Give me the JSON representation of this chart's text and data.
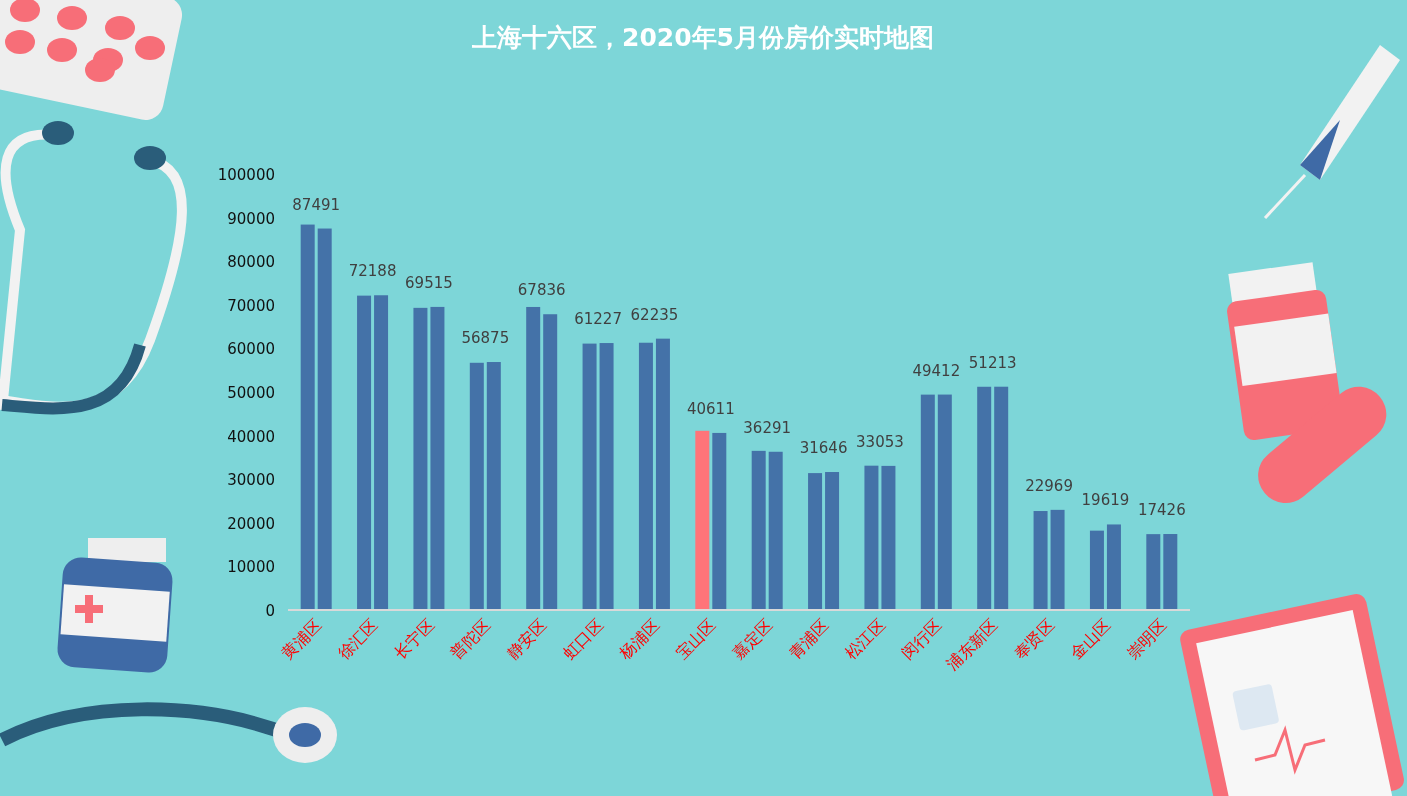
{
  "chart_data": {
    "type": "bar",
    "title": "上海十六区，2020年5月份房价实时地图",
    "categories": [
      "黄浦区",
      "徐汇区",
      "长宁区",
      "普陀区",
      "静安区",
      "虹口区",
      "杨浦区",
      "宝山区",
      "嘉定区",
      "青浦区",
      "松江区",
      "闵行区",
      "浦东新区",
      "奉贤区",
      "金山区",
      "崇明区"
    ],
    "series": [
      {
        "colors": [
          "#4472a8",
          "#4472a8",
          "#4472a8",
          "#4472a8",
          "#4472a8",
          "#4472a8",
          "#4472a8",
          "#ff7479",
          "#4472a8",
          "#4472a8",
          "#4472a8",
          "#4472a8",
          "#4472a8",
          "#4472a8",
          "#4472a8",
          "#4472a8"
        ],
        "values": [
          88400,
          72100,
          69300,
          56700,
          69500,
          61100,
          61300,
          41100,
          36500,
          31400,
          33100,
          49400,
          51200,
          22700,
          18200,
          17400
        ]
      },
      {
        "color": "#4472a8",
        "values": [
          87491,
          72188,
          69515,
          56875,
          67836,
          61227,
          62235,
          40611,
          36291,
          31646,
          33053,
          49412,
          51213,
          22969,
          19619,
          17426
        ],
        "value_labels": [
          "87491",
          "72188",
          "69515",
          "56875",
          "67836",
          "61227",
          "62235",
          "40611",
          "36291",
          "31646",
          "33053",
          "49412",
          "51213",
          "22969",
          "19619",
          "17426"
        ]
      }
    ],
    "ylim": [
      0,
      100000
    ],
    "yticks": [
      0,
      10000,
      20000,
      30000,
      40000,
      50000,
      60000,
      70000,
      80000,
      90000,
      100000
    ],
    "grid": false
  }
}
